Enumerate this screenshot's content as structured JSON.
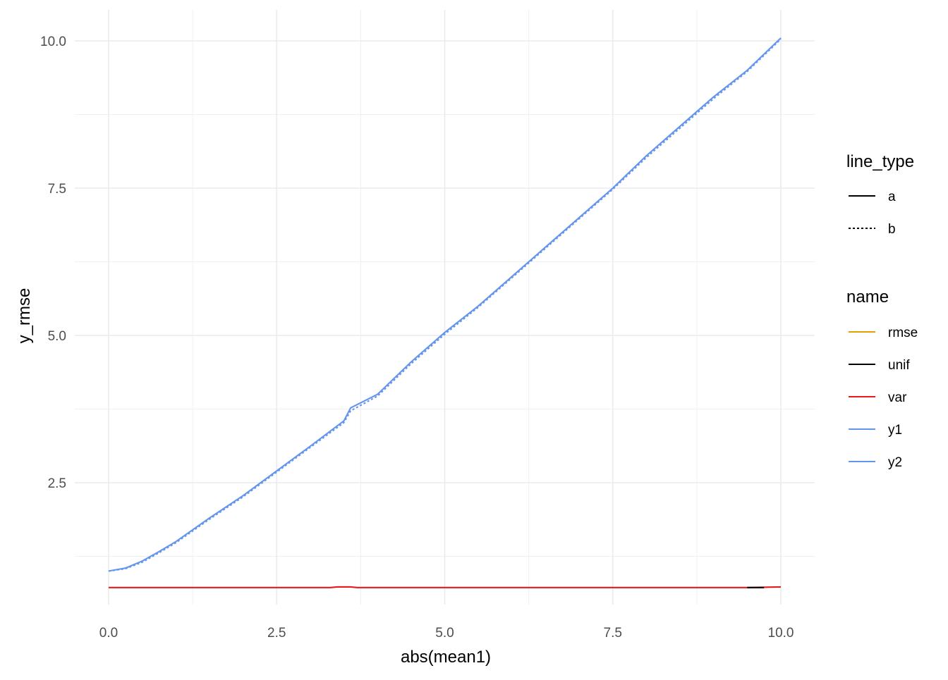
{
  "chart_data": {
    "type": "line",
    "title": "",
    "xlabel": "abs(mean1)",
    "ylabel": "y_rmse",
    "xlim": [
      0,
      10
    ],
    "ylim": [
      0.5,
      10.2
    ],
    "x_ticks": [
      0,
      2.5,
      5,
      7.5,
      10
    ],
    "x_tick_labels": [
      "0.0",
      "2.5",
      "5.0",
      "7.5",
      "10.0"
    ],
    "y_ticks": [
      2.5,
      5,
      7.5,
      10
    ],
    "y_tick_labels": [
      "2.5",
      "5.0",
      "7.5",
      "10.0"
    ],
    "grid": true,
    "legend_position": "right",
    "legends": [
      {
        "title": "line_type",
        "entries": [
          {
            "label": "a",
            "color": "#000000",
            "dash": "solid"
          },
          {
            "label": "b",
            "color": "#000000",
            "dash": "dotted"
          }
        ]
      },
      {
        "title": "name",
        "entries": [
          {
            "label": "rmse",
            "color": "#E69F00"
          },
          {
            "label": "unif",
            "color": "#000000"
          },
          {
            "label": "var",
            "color": "#E41A1C"
          },
          {
            "label": "y1",
            "color": "#6495ED"
          },
          {
            "label": "y2",
            "color": "#6495ED"
          }
        ]
      }
    ],
    "series": [
      {
        "name": "y1",
        "line_type": "a",
        "color": "#6495ED",
        "x": [
          0,
          0.25,
          0.5,
          0.75,
          1,
          1.5,
          2,
          2.5,
          3,
          3.5,
          3.6,
          4,
          4.5,
          5,
          5.5,
          6,
          6.5,
          7,
          7.5,
          8,
          8.5,
          9,
          9.5,
          10
        ],
        "y": [
          1.0,
          1.05,
          1.17,
          1.33,
          1.5,
          1.9,
          2.28,
          2.7,
          3.12,
          3.55,
          3.77,
          4.0,
          4.55,
          5.05,
          5.5,
          6.0,
          6.5,
          7.0,
          7.5,
          8.05,
          8.55,
          9.05,
          9.5,
          10.05
        ]
      },
      {
        "name": "y2",
        "line_type": "b",
        "color": "#6495ED",
        "x": [
          0,
          0.25,
          0.5,
          0.75,
          1,
          1.5,
          2,
          2.5,
          3,
          3.5,
          3.6,
          4,
          4.5,
          5,
          5.5,
          6,
          6.5,
          7,
          7.5,
          8,
          8.5,
          9,
          9.5,
          10
        ],
        "y": [
          1.0,
          1.04,
          1.15,
          1.31,
          1.48,
          1.88,
          2.26,
          2.68,
          3.1,
          3.52,
          3.72,
          3.97,
          4.52,
          5.02,
          5.48,
          5.98,
          6.48,
          6.98,
          7.48,
          8.02,
          8.52,
          9.02,
          9.48,
          10.03
        ]
      },
      {
        "name": "var",
        "line_type": "a",
        "color": "#E41A1C",
        "x": [
          0,
          3.3,
          3.4,
          3.6,
          3.7,
          9.5,
          10
        ],
        "y": [
          0.72,
          0.72,
          0.73,
          0.73,
          0.72,
          0.72,
          0.73
        ]
      },
      {
        "name": "unif",
        "line_type": "a",
        "color": "#000000",
        "x": [
          9.5,
          9.75
        ],
        "y": [
          0.72,
          0.72
        ]
      }
    ]
  }
}
